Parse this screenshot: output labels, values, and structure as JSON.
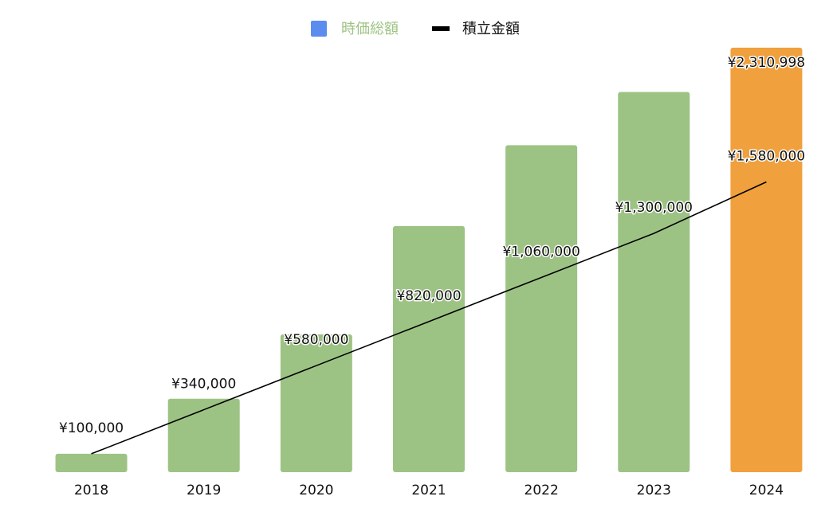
{
  "chart_data": {
    "type": "bar",
    "categories": [
      "2018",
      "2019",
      "2020",
      "2021",
      "2022",
      "2023",
      "2024"
    ],
    "series": [
      {
        "name": "時価総額",
        "type": "bar",
        "values": [
          100000,
          400000,
          750000,
          1340000,
          1780000,
          2070000,
          2310998
        ],
        "data_labels": [
          "",
          "",
          "",
          "",
          "",
          "",
          "¥2,310,998"
        ],
        "legend_color": "#5B8DEF",
        "legend_text_color": "#9DC384",
        "bar_color": "#9DC384",
        "highlight_index": 6,
        "highlight_color": "#F0A03C"
      },
      {
        "name": "積立金額",
        "type": "line",
        "values": [
          100000,
          340000,
          580000,
          820000,
          1060000,
          1300000,
          1580000
        ],
        "data_labels": [
          "¥100,000",
          "¥340,000",
          "¥580,000",
          "¥820,000",
          "¥1,060,000",
          "¥1,300,000",
          "¥1,580,000"
        ],
        "color": "#000000"
      }
    ],
    "ylim": [
      0,
      2410000
    ],
    "grid": false,
    "legend_position": "top-center",
    "title": "",
    "xlabel": "",
    "ylabel": ""
  }
}
